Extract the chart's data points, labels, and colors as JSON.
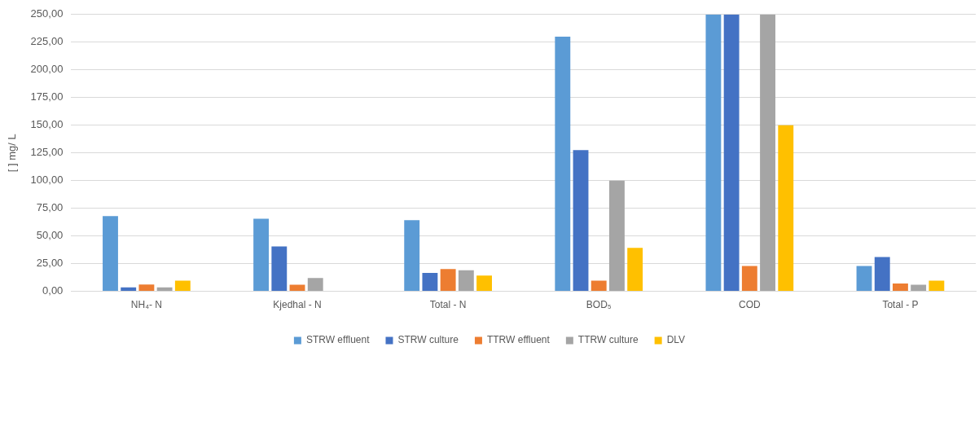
{
  "chart_data": {
    "type": "bar",
    "ylabel": "[ ] mg/ L",
    "categories": [
      "NH₄- N",
      "Kjedhal - N",
      "Total - N",
      "BOD₅",
      "COD",
      "Total - P"
    ],
    "series": [
      {
        "name": "STRW effluent",
        "color": "#5b9bd5",
        "values": [
          68,
          65.5,
          64.3,
          230,
          250,
          22.8
        ]
      },
      {
        "name": "STRW culture",
        "color": "#4472c4",
        "values": [
          3.5,
          40.6,
          16.6,
          127.5,
          250,
          31
        ]
      },
      {
        "name": "TTRW effluent",
        "color": "#ed7d31",
        "values": [
          6.1,
          6,
          20.2,
          9.7,
          22.8,
          7.1
        ]
      },
      {
        "name": "TTRW culture",
        "color": "#a5a5a5",
        "values": [
          3.5,
          12,
          19,
          100,
          250,
          5.9
        ]
      },
      {
        "name": "DLV",
        "color": "#ffc000",
        "values": [
          9.7,
          null,
          14.2,
          39.2,
          150,
          9.7
        ]
      }
    ],
    "ylim": [
      0,
      250
    ],
    "yticks": [
      {
        "value": 0,
        "label": "0,00"
      },
      {
        "value": 25,
        "label": "25,00"
      },
      {
        "value": 50,
        "label": "50,00"
      },
      {
        "value": 75,
        "label": "75,00"
      },
      {
        "value": 100,
        "label": "100,00"
      },
      {
        "value": 125,
        "label": "125,00"
      },
      {
        "value": 150,
        "label": "150,00"
      },
      {
        "value": 175,
        "label": "175,00"
      },
      {
        "value": 200,
        "label": "200,00"
      },
      {
        "value": 225,
        "label": "225,00"
      },
      {
        "value": 250,
        "label": "250,00"
      }
    ],
    "grid": "y",
    "legend": "bottom"
  }
}
